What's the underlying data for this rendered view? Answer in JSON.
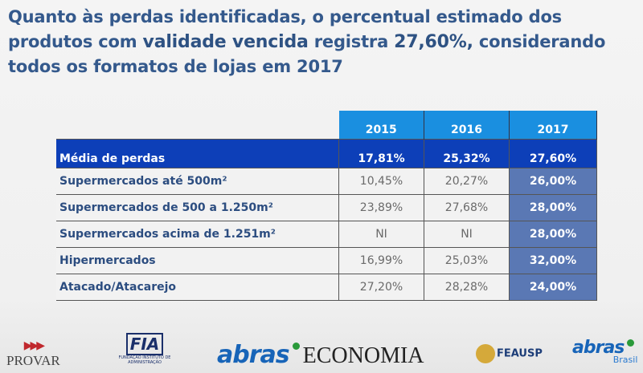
{
  "title": {
    "part1": "Quanto às perdas identificadas, o percentual estimado dos produtos com ",
    "highlight1": "validade vencida",
    "part2": " registra ",
    "highlight2": "27,60%,",
    "part3": " considerando todos os formatos de lojas em 2017"
  },
  "table": {
    "years": [
      "2015",
      "2016",
      "2017"
    ],
    "average": {
      "label": "Média de perdas",
      "values": [
        "17,81%",
        "25,32%",
        "27,60%"
      ]
    },
    "rows": [
      {
        "label": "Supermercados até 500m²",
        "values": [
          "10,45%",
          "20,27%",
          "26,00%"
        ]
      },
      {
        "label": "Supermercados de 500 a 1.250m²",
        "values": [
          "23,89%",
          "27,68%",
          "28,00%"
        ]
      },
      {
        "label": "Supermercados acima de 1.251m²",
        "values": [
          "NI",
          "NI",
          "28,00%"
        ]
      },
      {
        "label": "Hipermercados",
        "values": [
          "16,99%",
          "25,03%",
          "32,00%"
        ]
      },
      {
        "label": "Atacado/Atacarejo",
        "values": [
          "27,20%",
          "28,28%",
          "24,00%"
        ]
      }
    ]
  },
  "footer": {
    "provar": "PROVAR",
    "fia": "FIA",
    "fia_sub": "FUNDAÇÃO INSTITUTO DE ADMINISTRAÇÃO",
    "abras": "abras",
    "economia": "ECONOMIA",
    "feausp": "FEAUSP",
    "abras2": "abras",
    "brasil": "Brasil"
  }
}
